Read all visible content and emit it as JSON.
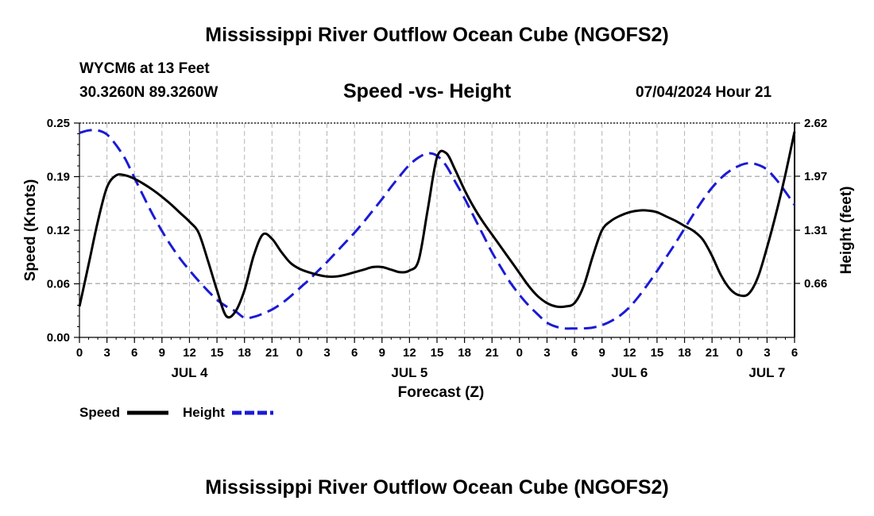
{
  "page_title": "Mississippi River Outflow Ocean Cube (NGOFS2)",
  "footer_title": "Mississippi River Outflow Ocean Cube (NGOFS2)",
  "station": {
    "name": "WYCM6 at 13 Feet",
    "coords": "30.3260N  89.3260W",
    "timestamp": "07/04/2024 Hour 21"
  },
  "colors": {
    "speed": "#000000",
    "height": "#1a1ad6",
    "grid": "#b4b4b4"
  },
  "chart_data": {
    "type": "line",
    "title": "Speed -vs- Height",
    "xlabel": "Forecast (Z)",
    "ylabel": "Speed (Knots)",
    "y2label": "Height (feet)",
    "xlim": [
      0,
      78
    ],
    "ylim": [
      0,
      0.25
    ],
    "y2lim": [
      0,
      2.62
    ],
    "x_ticks": [
      0,
      3,
      6,
      9,
      12,
      15,
      18,
      21,
      24,
      27,
      30,
      33,
      36,
      39,
      42,
      45,
      48,
      51,
      54,
      57,
      60,
      63,
      66,
      69,
      72,
      75,
      78
    ],
    "x_tick_labels": [
      "0",
      "3",
      "6",
      "9",
      "12",
      "15",
      "18",
      "21",
      "0",
      "3",
      "6",
      "9",
      "12",
      "15",
      "18",
      "21",
      "0",
      "3",
      "6",
      "9",
      "12",
      "15",
      "18",
      "21",
      "0",
      "3",
      "6"
    ],
    "day_labels": [
      {
        "x": 12,
        "label": "JUL 4"
      },
      {
        "x": 36,
        "label": "JUL 5"
      },
      {
        "x": 60,
        "label": "JUL 6"
      },
      {
        "x": 75,
        "label": "JUL 7"
      }
    ],
    "y_ticks": [
      0.0,
      0.0625,
      0.125,
      0.1875,
      0.25
    ],
    "y_tick_labels": [
      "0.00",
      "0.06",
      "0.12",
      "0.19",
      "0.25"
    ],
    "y2_ticks": [
      0.66,
      1.31,
      1.97,
      2.62
    ],
    "y2_tick_labels": [
      "0.66",
      "1.31",
      "1.97",
      "2.62"
    ],
    "legend_position": "bottom-left",
    "series": [
      {
        "name": "Speed",
        "axis": "left",
        "style": "solid",
        "x": [
          0,
          1,
          2,
          3,
          4,
          5,
          6,
          7,
          8,
          9,
          10,
          11,
          12,
          13,
          14,
          15,
          16,
          17,
          18,
          19,
          20,
          21,
          22,
          23,
          24,
          25,
          26,
          27,
          28,
          29,
          30,
          31,
          32,
          33,
          34,
          35,
          36,
          37,
          38,
          39,
          40,
          41,
          42,
          43,
          44,
          45,
          46,
          47,
          48,
          49,
          50,
          51,
          52,
          53,
          54,
          55,
          56,
          57,
          58,
          59,
          60,
          61,
          62,
          63,
          64,
          65,
          66,
          67,
          68,
          69,
          70,
          71,
          72,
          73,
          74,
          75,
          76,
          77,
          78
        ],
        "values": [
          0.036,
          0.085,
          0.135,
          0.175,
          0.189,
          0.189,
          0.185,
          0.179,
          0.172,
          0.164,
          0.155,
          0.145,
          0.135,
          0.122,
          0.09,
          0.055,
          0.025,
          0.03,
          0.055,
          0.095,
          0.12,
          0.115,
          0.1,
          0.087,
          0.08,
          0.076,
          0.073,
          0.071,
          0.071,
          0.073,
          0.076,
          0.079,
          0.082,
          0.082,
          0.079,
          0.076,
          0.078,
          0.09,
          0.15,
          0.21,
          0.215,
          0.195,
          0.172,
          0.152,
          0.135,
          0.12,
          0.105,
          0.09,
          0.075,
          0.06,
          0.048,
          0.04,
          0.036,
          0.036,
          0.04,
          0.06,
          0.095,
          0.125,
          0.136,
          0.142,
          0.146,
          0.148,
          0.148,
          0.146,
          0.141,
          0.136,
          0.13,
          0.124,
          0.114,
          0.095,
          0.072,
          0.056,
          0.049,
          0.051,
          0.07,
          0.105,
          0.145,
          0.19,
          0.24
        ]
      },
      {
        "name": "Height",
        "axis": "right",
        "style": "dashed",
        "x": [
          0,
          1,
          2,
          3,
          4,
          5,
          6,
          7,
          8,
          9,
          10,
          11,
          12,
          13,
          14,
          15,
          16,
          17,
          18,
          19,
          20,
          21,
          22,
          23,
          24,
          25,
          26,
          27,
          28,
          29,
          30,
          31,
          32,
          33,
          34,
          35,
          36,
          37,
          38,
          39,
          40,
          41,
          42,
          43,
          44,
          45,
          46,
          47,
          48,
          49,
          50,
          51,
          52,
          53,
          54,
          55,
          56,
          57,
          58,
          59,
          60,
          61,
          62,
          63,
          64,
          65,
          66,
          67,
          68,
          69,
          70,
          71,
          72,
          73,
          74,
          75,
          76,
          77,
          78
        ],
        "values": [
          2.5,
          2.53,
          2.53,
          2.48,
          2.35,
          2.18,
          1.95,
          1.72,
          1.5,
          1.3,
          1.12,
          0.96,
          0.82,
          0.69,
          0.57,
          0.46,
          0.38,
          0.32,
          0.24,
          0.25,
          0.29,
          0.34,
          0.41,
          0.5,
          0.6,
          0.7,
          0.81,
          0.92,
          1.04,
          1.16,
          1.28,
          1.41,
          1.55,
          1.69,
          1.84,
          1.98,
          2.11,
          2.2,
          2.25,
          2.22,
          2.1,
          1.9,
          1.7,
          1.48,
          1.26,
          1.04,
          0.85,
          0.67,
          0.52,
          0.39,
          0.28,
          0.18,
          0.13,
          0.11,
          0.11,
          0.11,
          0.12,
          0.15,
          0.2,
          0.27,
          0.37,
          0.5,
          0.65,
          0.81,
          0.98,
          1.15,
          1.33,
          1.51,
          1.68,
          1.83,
          1.95,
          2.04,
          2.1,
          2.13,
          2.11,
          2.05,
          1.93,
          1.78,
          1.62
        ]
      }
    ]
  }
}
